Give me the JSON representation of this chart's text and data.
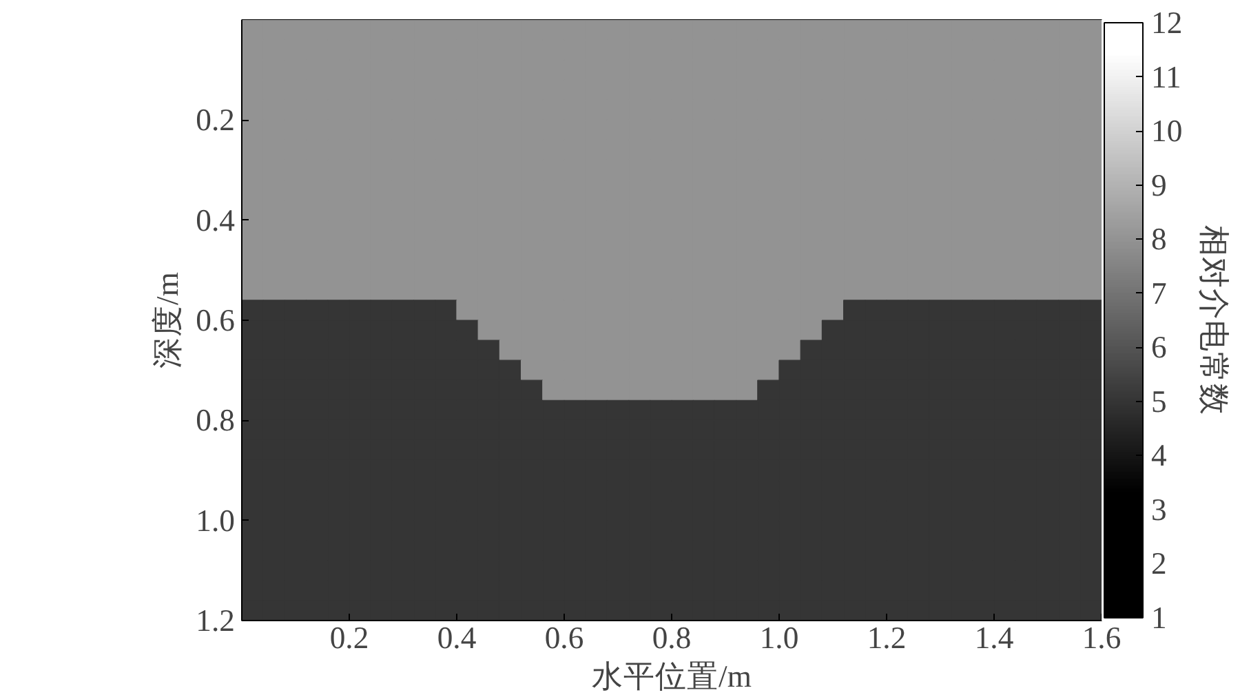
{
  "chart_data": {
    "type": "heatmap",
    "xlabel": "水平位置/m",
    "ylabel": "深度/m",
    "clabel": "相对介电常数",
    "xlim": [
      0,
      1.6
    ],
    "ylim": [
      1.2,
      0
    ],
    "xticks": [
      0.2,
      0.4,
      0.6,
      0.8,
      {
        "value": 1,
        "label": "1.0"
      },
      1.2,
      1.4,
      1.6
    ],
    "yticks": [
      0.2,
      0.4,
      0.6,
      0.8,
      {
        "value": 1,
        "label": "1.0"
      },
      1.2
    ],
    "clim": [
      1,
      12
    ],
    "cticks": [
      1,
      2,
      3,
      4,
      5,
      6,
      7,
      8,
      9,
      10,
      11,
      12
    ],
    "cells": [
      [
        8,
        8,
        8,
        8,
        8,
        8,
        8,
        8,
        8,
        8,
        8,
        8,
        8,
        8,
        8,
        8,
        8,
        8,
        8,
        8,
        8,
        8,
        8,
        8,
        8,
        8,
        8,
        8,
        8,
        8,
        8,
        8,
        8,
        8,
        8,
        8,
        8,
        8,
        8,
        8
      ],
      [
        8,
        8,
        8,
        8,
        8,
        8,
        8,
        8,
        8,
        8,
        8,
        8,
        8,
        8,
        8,
        8,
        8,
        8,
        8,
        8,
        8,
        8,
        8,
        8,
        8,
        8,
        8,
        8,
        8,
        8,
        8,
        8,
        8,
        8,
        8,
        8,
        8,
        8,
        8,
        8
      ],
      [
        8,
        8,
        8,
        8,
        8,
        8,
        8,
        8,
        8,
        8,
        8,
        8,
        8,
        8,
        8,
        8,
        8,
        8,
        8,
        8,
        8,
        8,
        8,
        8,
        8,
        8,
        8,
        8,
        8,
        8,
        8,
        8,
        8,
        8,
        8,
        8,
        8,
        8,
        8,
        8
      ],
      [
        8,
        8,
        8,
        8,
        8,
        8,
        8,
        8,
        8,
        8,
        8,
        8,
        8,
        8,
        8,
        8,
        8,
        8,
        8,
        8,
        8,
        8,
        8,
        8,
        8,
        8,
        8,
        8,
        8,
        8,
        8,
        8,
        8,
        8,
        8,
        8,
        8,
        8,
        8,
        8
      ],
      [
        8,
        8,
        8,
        8,
        8,
        8,
        8,
        8,
        8,
        8,
        8,
        8,
        8,
        8,
        8,
        8,
        8,
        8,
        8,
        8,
        8,
        8,
        8,
        8,
        8,
        8,
        8,
        8,
        8,
        8,
        8,
        8,
        8,
        8,
        8,
        8,
        8,
        8,
        8,
        8
      ],
      [
        8,
        8,
        8,
        8,
        8,
        8,
        8,
        8,
        8,
        8,
        8,
        8,
        8,
        8,
        8,
        8,
        8,
        8,
        8,
        8,
        8,
        8,
        8,
        8,
        8,
        8,
        8,
        8,
        8,
        8,
        8,
        8,
        8,
        8,
        8,
        8,
        8,
        8,
        8,
        8
      ],
      [
        8,
        8,
        8,
        8,
        8,
        8,
        8,
        8,
        8,
        8,
        8,
        8,
        8,
        8,
        8,
        8,
        8,
        8,
        8,
        8,
        8,
        8,
        8,
        8,
        8,
        8,
        8,
        8,
        8,
        8,
        8,
        8,
        8,
        8,
        8,
        8,
        8,
        8,
        8,
        8
      ],
      [
        8,
        8,
        8,
        8,
        8,
        8,
        8,
        8,
        8,
        8,
        8,
        8,
        8,
        8,
        8,
        8,
        8,
        8,
        8,
        8,
        8,
        8,
        8,
        8,
        8,
        8,
        8,
        8,
        8,
        8,
        8,
        8,
        8,
        8,
        8,
        8,
        8,
        8,
        8,
        8
      ],
      [
        8,
        8,
        8,
        8,
        8,
        8,
        8,
        8,
        8,
        8,
        8,
        8,
        8,
        8,
        8,
        8,
        8,
        8,
        8,
        8,
        8,
        8,
        8,
        8,
        8,
        8,
        8,
        8,
        8,
        8,
        8,
        8,
        8,
        8,
        8,
        8,
        8,
        8,
        8,
        8
      ],
      [
        8,
        8,
        8,
        8,
        8,
        8,
        8,
        8,
        8,
        8,
        8,
        8,
        8,
        8,
        8,
        8,
        8,
        8,
        8,
        8,
        8,
        8,
        8,
        8,
        8,
        8,
        8,
        8,
        8,
        8,
        8,
        8,
        8,
        8,
        8,
        8,
        8,
        8,
        8,
        8
      ],
      [
        8,
        8,
        8,
        8,
        8,
        8,
        8,
        8,
        8,
        8,
        8,
        8,
        8,
        8,
        8,
        8,
        8,
        8,
        8,
        8,
        8,
        8,
        8,
        8,
        8,
        8,
        8,
        8,
        8,
        8,
        8,
        8,
        8,
        8,
        8,
        8,
        8,
        8,
        8,
        8
      ],
      [
        8,
        8,
        8,
        8,
        8,
        8,
        8,
        8,
        8,
        8,
        8,
        8,
        8,
        8,
        8,
        8,
        8,
        8,
        8,
        8,
        8,
        8,
        8,
        8,
        8,
        8,
        8,
        8,
        8,
        8,
        8,
        8,
        8,
        8,
        8,
        8,
        8,
        8,
        8,
        8
      ],
      [
        8,
        8,
        8,
        8,
        8,
        8,
        8,
        8,
        8,
        8,
        8,
        8,
        8,
        8,
        8,
        8,
        8,
        8,
        8,
        8,
        8,
        8,
        8,
        8,
        8,
        8,
        8,
        8,
        8,
        8,
        8,
        8,
        8,
        8,
        8,
        8,
        8,
        8,
        8,
        8
      ],
      [
        8,
        8,
        8,
        8,
        8,
        8,
        8,
        8,
        8,
        8,
        8,
        8,
        8,
        8,
        8,
        8,
        8,
        8,
        8,
        8,
        8,
        8,
        8,
        8,
        8,
        8,
        8,
        8,
        8,
        8,
        8,
        8,
        8,
        8,
        8,
        8,
        8,
        8,
        8,
        8
      ],
      [
        5,
        5,
        5,
        5,
        5,
        5,
        5,
        5,
        5,
        5,
        8,
        8,
        8,
        8,
        8,
        8,
        8,
        8,
        8,
        8,
        8,
        8,
        8,
        8,
        8,
        8,
        8,
        8,
        5,
        5,
        5,
        5,
        5,
        5,
        5,
        5,
        5,
        5,
        5,
        5
      ],
      [
        5,
        5,
        5,
        5,
        5,
        5,
        5,
        5,
        5,
        5,
        5,
        8,
        8,
        8,
        8,
        8,
        8,
        8,
        8,
        8,
        8,
        8,
        8,
        8,
        8,
        8,
        8,
        5,
        5,
        5,
        5,
        5,
        5,
        5,
        5,
        5,
        5,
        5,
        5,
        5
      ],
      [
        5,
        5,
        5,
        5,
        5,
        5,
        5,
        5,
        5,
        5,
        5,
        5,
        8,
        8,
        8,
        8,
        8,
        8,
        8,
        8,
        8,
        8,
        8,
        8,
        8,
        8,
        5,
        5,
        5,
        5,
        5,
        5,
        5,
        5,
        5,
        5,
        5,
        5,
        5,
        5
      ],
      [
        5,
        5,
        5,
        5,
        5,
        5,
        5,
        5,
        5,
        5,
        5,
        5,
        5,
        8,
        8,
        8,
        8,
        8,
        8,
        8,
        8,
        8,
        8,
        8,
        8,
        5,
        5,
        5,
        5,
        5,
        5,
        5,
        5,
        5,
        5,
        5,
        5,
        5,
        5,
        5
      ],
      [
        5,
        5,
        5,
        5,
        5,
        5,
        5,
        5,
        5,
        5,
        5,
        5,
        5,
        5,
        8,
        8,
        8,
        8,
        8,
        8,
        8,
        8,
        8,
        8,
        5,
        5,
        5,
        5,
        5,
        5,
        5,
        5,
        5,
        5,
        5,
        5,
        5,
        5,
        5,
        5
      ],
      [
        5,
        5,
        5,
        5,
        5,
        5,
        5,
        5,
        5,
        5,
        5,
        5,
        5,
        5,
        5,
        5,
        5,
        5,
        5,
        5,
        5,
        5,
        5,
        5,
        5,
        5,
        5,
        5,
        5,
        5,
        5,
        5,
        5,
        5,
        5,
        5,
        5,
        5,
        5,
        5
      ],
      [
        5,
        5,
        5,
        5,
        5,
        5,
        5,
        5,
        5,
        5,
        5,
        5,
        5,
        5,
        5,
        5,
        5,
        5,
        5,
        5,
        5,
        5,
        5,
        5,
        5,
        5,
        5,
        5,
        5,
        5,
        5,
        5,
        5,
        5,
        5,
        5,
        5,
        5,
        5,
        5
      ],
      [
        5,
        5,
        5,
        5,
        5,
        5,
        5,
        5,
        5,
        5,
        5,
        5,
        5,
        5,
        5,
        5,
        5,
        5,
        5,
        5,
        5,
        5,
        5,
        5,
        5,
        5,
        5,
        5,
        5,
        5,
        5,
        5,
        5,
        5,
        5,
        5,
        5,
        5,
        5,
        5
      ],
      [
        5,
        5,
        5,
        5,
        5,
        5,
        5,
        5,
        5,
        5,
        5,
        5,
        5,
        5,
        5,
        5,
        5,
        5,
        5,
        5,
        5,
        5,
        5,
        5,
        5,
        5,
        5,
        5,
        5,
        5,
        5,
        5,
        5,
        5,
        5,
        5,
        5,
        5,
        5,
        5
      ],
      [
        5,
        5,
        5,
        5,
        5,
        5,
        5,
        5,
        5,
        5,
        5,
        5,
        5,
        5,
        5,
        5,
        5,
        5,
        5,
        5,
        5,
        5,
        5,
        5,
        5,
        5,
        5,
        5,
        5,
        5,
        5,
        5,
        5,
        5,
        5,
        5,
        5,
        5,
        5,
        5
      ],
      [
        5,
        5,
        5,
        5,
        5,
        5,
        5,
        5,
        5,
        5,
        5,
        5,
        5,
        5,
        5,
        5,
        5,
        5,
        5,
        5,
        5,
        5,
        5,
        5,
        5,
        5,
        5,
        5,
        5,
        5,
        5,
        5,
        5,
        5,
        5,
        5,
        5,
        5,
        5,
        5
      ],
      [
        5,
        5,
        5,
        5,
        5,
        5,
        5,
        5,
        5,
        5,
        5,
        5,
        5,
        5,
        5,
        5,
        5,
        5,
        5,
        5,
        5,
        5,
        5,
        5,
        5,
        5,
        5,
        5,
        5,
        5,
        5,
        5,
        5,
        5,
        5,
        5,
        5,
        5,
        5,
        5
      ],
      [
        5,
        5,
        5,
        5,
        5,
        5,
        5,
        5,
        5,
        5,
        5,
        5,
        5,
        5,
        5,
        5,
        5,
        5,
        5,
        5,
        5,
        5,
        5,
        5,
        5,
        5,
        5,
        5,
        5,
        5,
        5,
        5,
        5,
        5,
        5,
        5,
        5,
        5,
        5,
        5
      ],
      [
        5,
        5,
        5,
        5,
        5,
        5,
        5,
        5,
        5,
        5,
        5,
        5,
        5,
        5,
        5,
        5,
        5,
        5,
        5,
        5,
        5,
        5,
        5,
        5,
        5,
        5,
        5,
        5,
        5,
        5,
        5,
        5,
        5,
        5,
        5,
        5,
        5,
        5,
        5,
        5
      ],
      [
        5,
        5,
        5,
        5,
        5,
        5,
        5,
        5,
        5,
        5,
        5,
        5,
        5,
        5,
        5,
        5,
        5,
        5,
        5,
        5,
        5,
        5,
        5,
        5,
        5,
        5,
        5,
        5,
        5,
        5,
        5,
        5,
        5,
        5,
        5,
        5,
        5,
        5,
        5,
        5
      ],
      [
        5,
        5,
        5,
        5,
        5,
        5,
        5,
        5,
        5,
        5,
        5,
        5,
        5,
        5,
        5,
        5,
        5,
        5,
        5,
        5,
        5,
        5,
        5,
        5,
        5,
        5,
        5,
        5,
        5,
        5,
        5,
        5,
        5,
        5,
        5,
        5,
        5,
        5,
        5,
        5
      ]
    ]
  }
}
